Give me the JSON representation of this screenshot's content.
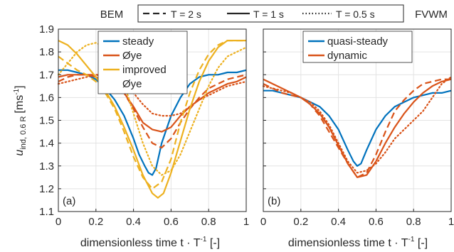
{
  "header": {
    "left_label": "BEM",
    "right_label": "FVWM",
    "line_styles": [
      {
        "label": "T = 2 s",
        "dash": "dashed"
      },
      {
        "label": "T = 1 s",
        "dash": "solid"
      },
      {
        "label": "T = 0.5 s",
        "dash": "dotted"
      }
    ]
  },
  "axes": {
    "ylabel_main": "u",
    "ylabel_sub": "ind, 0.6 R",
    "ylabel_unit_open": "[ms",
    "ylabel_unit_exp": "-1",
    "ylabel_unit_close": "]",
    "xlabel_main": "dimensionless time t · T",
    "xlabel_exp": "-1",
    "xlabel_unit": " [-]"
  },
  "colors": {
    "blue": "#0072BD",
    "red": "#D95319",
    "yellow": "#EDB120"
  },
  "chart_data": [
    {
      "type": "line",
      "panel_label": "(a)",
      "xlim": [
        0,
        1
      ],
      "ylim": [
        1.1,
        1.9
      ],
      "xticks": [
        0,
        0.2,
        0.4,
        0.6,
        0.8,
        1
      ],
      "xtick_labels": [
        "0",
        "0.2",
        "0.4",
        "0.6",
        "0.8",
        "1"
      ],
      "yticks": [
        1.1,
        1.2,
        1.3,
        1.4,
        1.5,
        1.6,
        1.7,
        1.8,
        1.9
      ],
      "ytick_labels": [
        "1.1",
        "1.2",
        "1.3",
        "1.4",
        "1.5",
        "1.6",
        "1.7",
        "1.8",
        "1.9"
      ],
      "grid": true,
      "legend": {
        "placement": "top-center",
        "entries": [
          {
            "label": "steady",
            "color": "#0072BD"
          },
          {
            "label": "Øye",
            "color": "#D95319"
          },
          {
            "label": "improved",
            "color": "#EDB120"
          },
          {
            "label": "Øye",
            "color": "#EDB120",
            "continuation": true
          }
        ]
      },
      "series": [
        {
          "color": "#0072BD",
          "dash": "solid",
          "x": [
            0,
            0.05,
            0.1,
            0.15,
            0.2,
            0.25,
            0.3,
            0.35,
            0.4,
            0.43,
            0.46,
            0.48,
            0.5,
            0.52,
            0.55,
            0.6,
            0.65,
            0.7,
            0.75,
            0.8,
            0.85,
            0.9,
            0.95,
            1.0
          ],
          "y": [
            1.72,
            1.72,
            1.71,
            1.7,
            1.68,
            1.64,
            1.59,
            1.52,
            1.42,
            1.35,
            1.3,
            1.27,
            1.26,
            1.29,
            1.4,
            1.52,
            1.6,
            1.66,
            1.69,
            1.7,
            1.7,
            1.71,
            1.71,
            1.72
          ]
        },
        {
          "color": "#D95319",
          "dash": "dashed",
          "x": [
            0,
            0.05,
            0.1,
            0.15,
            0.2,
            0.25,
            0.3,
            0.35,
            0.4,
            0.45,
            0.5,
            0.55,
            0.6,
            0.65,
            0.7,
            0.75,
            0.8,
            0.85,
            0.9,
            0.95,
            1.0
          ],
          "y": [
            1.67,
            1.69,
            1.7,
            1.7,
            1.7,
            1.69,
            1.67,
            1.62,
            1.55,
            1.47,
            1.4,
            1.38,
            1.42,
            1.49,
            1.55,
            1.6,
            1.64,
            1.66,
            1.68,
            1.69,
            1.7
          ]
        },
        {
          "color": "#D95319",
          "dash": "solid",
          "x": [
            0,
            0.05,
            0.1,
            0.15,
            0.2,
            0.25,
            0.3,
            0.35,
            0.4,
            0.45,
            0.5,
            0.55,
            0.6,
            0.65,
            0.7,
            0.75,
            0.8,
            0.85,
            0.9,
            0.95,
            1.0
          ],
          "y": [
            1.69,
            1.7,
            1.7,
            1.7,
            1.69,
            1.67,
            1.65,
            1.62,
            1.56,
            1.49,
            1.46,
            1.45,
            1.47,
            1.52,
            1.56,
            1.59,
            1.62,
            1.64,
            1.66,
            1.67,
            1.69
          ]
        },
        {
          "color": "#D95319",
          "dash": "dotted",
          "x": [
            0,
            0.05,
            0.1,
            0.15,
            0.2,
            0.25,
            0.3,
            0.35,
            0.4,
            0.45,
            0.5,
            0.55,
            0.6,
            0.65,
            0.7,
            0.75,
            0.8,
            0.85,
            0.9,
            0.95,
            1.0
          ],
          "y": [
            1.66,
            1.67,
            1.68,
            1.69,
            1.7,
            1.7,
            1.69,
            1.66,
            1.62,
            1.57,
            1.53,
            1.52,
            1.52,
            1.53,
            1.56,
            1.59,
            1.61,
            1.63,
            1.65,
            1.66,
            1.67
          ]
        },
        {
          "color": "#EDB120",
          "dash": "dashed",
          "x": [
            0,
            0.05,
            0.1,
            0.15,
            0.2,
            0.25,
            0.3,
            0.35,
            0.4,
            0.45,
            0.5,
            0.55,
            0.6,
            0.65,
            0.7,
            0.75,
            0.8,
            0.85,
            0.9,
            0.95,
            1.0
          ],
          "y": [
            1.78,
            1.75,
            1.72,
            1.7,
            1.67,
            1.62,
            1.55,
            1.45,
            1.34,
            1.25,
            1.2,
            1.23,
            1.33,
            1.49,
            1.62,
            1.72,
            1.79,
            1.83,
            1.85,
            1.85,
            1.85
          ]
        },
        {
          "color": "#EDB120",
          "dash": "solid",
          "x": [
            0,
            0.05,
            0.1,
            0.15,
            0.2,
            0.25,
            0.3,
            0.35,
            0.4,
            0.45,
            0.5,
            0.53,
            0.56,
            0.6,
            0.65,
            0.7,
            0.75,
            0.8,
            0.85,
            0.9,
            0.95,
            1.0
          ],
          "y": [
            1.85,
            1.83,
            1.79,
            1.74,
            1.69,
            1.63,
            1.56,
            1.47,
            1.37,
            1.26,
            1.18,
            1.16,
            1.18,
            1.27,
            1.41,
            1.55,
            1.67,
            1.76,
            1.82,
            1.85,
            1.85,
            1.85
          ]
        },
        {
          "color": "#EDB120",
          "dash": "dotted",
          "x": [
            0,
            0.05,
            0.1,
            0.15,
            0.2,
            0.25,
            0.3,
            0.35,
            0.4,
            0.45,
            0.5,
            0.55,
            0.6,
            0.65,
            0.7,
            0.75,
            0.8,
            0.85,
            0.9,
            0.95,
            1.0
          ],
          "y": [
            1.7,
            1.75,
            1.8,
            1.83,
            1.84,
            1.82,
            1.76,
            1.66,
            1.53,
            1.4,
            1.3,
            1.26,
            1.28,
            1.35,
            1.45,
            1.55,
            1.65,
            1.73,
            1.78,
            1.8,
            1.82
          ]
        }
      ]
    },
    {
      "type": "line",
      "panel_label": "(b)",
      "xlim": [
        0,
        1
      ],
      "ylim": [
        1.1,
        1.9
      ],
      "xticks": [
        0,
        0.2,
        0.4,
        0.6,
        0.8,
        1
      ],
      "xtick_labels": [
        "0",
        "0.2",
        "0.4",
        "0.6",
        "0.8",
        "1"
      ],
      "yticks": [
        1.1,
        1.2,
        1.3,
        1.4,
        1.5,
        1.6,
        1.7,
        1.8,
        1.9
      ],
      "grid": true,
      "legend": {
        "placement": "top-center",
        "entries": [
          {
            "label": "quasi-steady",
            "color": "#0072BD"
          },
          {
            "label": "dynamic",
            "color": "#D95319"
          }
        ]
      },
      "series": [
        {
          "color": "#0072BD",
          "dash": "solid",
          "x": [
            0,
            0.05,
            0.1,
            0.15,
            0.2,
            0.25,
            0.3,
            0.35,
            0.4,
            0.45,
            0.48,
            0.5,
            0.52,
            0.55,
            0.6,
            0.65,
            0.7,
            0.75,
            0.8,
            0.85,
            0.9,
            0.95,
            1.0
          ],
          "y": [
            1.63,
            1.63,
            1.62,
            1.61,
            1.6,
            1.58,
            1.56,
            1.52,
            1.46,
            1.37,
            1.32,
            1.3,
            1.31,
            1.37,
            1.46,
            1.52,
            1.56,
            1.58,
            1.6,
            1.61,
            1.62,
            1.62,
            1.63
          ]
        },
        {
          "color": "#D95319",
          "dash": "dashed",
          "x": [
            0,
            0.05,
            0.1,
            0.15,
            0.2,
            0.25,
            0.3,
            0.35,
            0.4,
            0.45,
            0.5,
            0.55,
            0.6,
            0.65,
            0.7,
            0.75,
            0.8,
            0.85,
            0.9,
            0.95,
            1.0
          ],
          "y": [
            1.66,
            1.64,
            1.62,
            1.61,
            1.6,
            1.57,
            1.52,
            1.45,
            1.38,
            1.31,
            1.25,
            1.27,
            1.35,
            1.45,
            1.54,
            1.59,
            1.63,
            1.66,
            1.67,
            1.68,
            1.68
          ]
        },
        {
          "color": "#D95319",
          "dash": "solid",
          "x": [
            0,
            0.05,
            0.1,
            0.15,
            0.2,
            0.25,
            0.3,
            0.35,
            0.4,
            0.45,
            0.5,
            0.55,
            0.6,
            0.65,
            0.7,
            0.75,
            0.8,
            0.85,
            0.9,
            0.95,
            1.0
          ],
          "y": [
            1.68,
            1.66,
            1.64,
            1.62,
            1.6,
            1.57,
            1.53,
            1.47,
            1.39,
            1.31,
            1.25,
            1.26,
            1.32,
            1.4,
            1.47,
            1.53,
            1.58,
            1.62,
            1.65,
            1.67,
            1.68
          ]
        },
        {
          "color": "#D95319",
          "dash": "dotted",
          "x": [
            0,
            0.05,
            0.1,
            0.15,
            0.2,
            0.25,
            0.3,
            0.35,
            0.4,
            0.45,
            0.5,
            0.55,
            0.6,
            0.65,
            0.7,
            0.75,
            0.8,
            0.85,
            0.9,
            0.95,
            1.0
          ],
          "y": [
            1.65,
            1.64,
            1.63,
            1.62,
            1.6,
            1.58,
            1.54,
            1.48,
            1.4,
            1.32,
            1.27,
            1.28,
            1.31,
            1.36,
            1.42,
            1.46,
            1.5,
            1.54,
            1.6,
            1.66,
            1.69
          ]
        }
      ]
    }
  ]
}
